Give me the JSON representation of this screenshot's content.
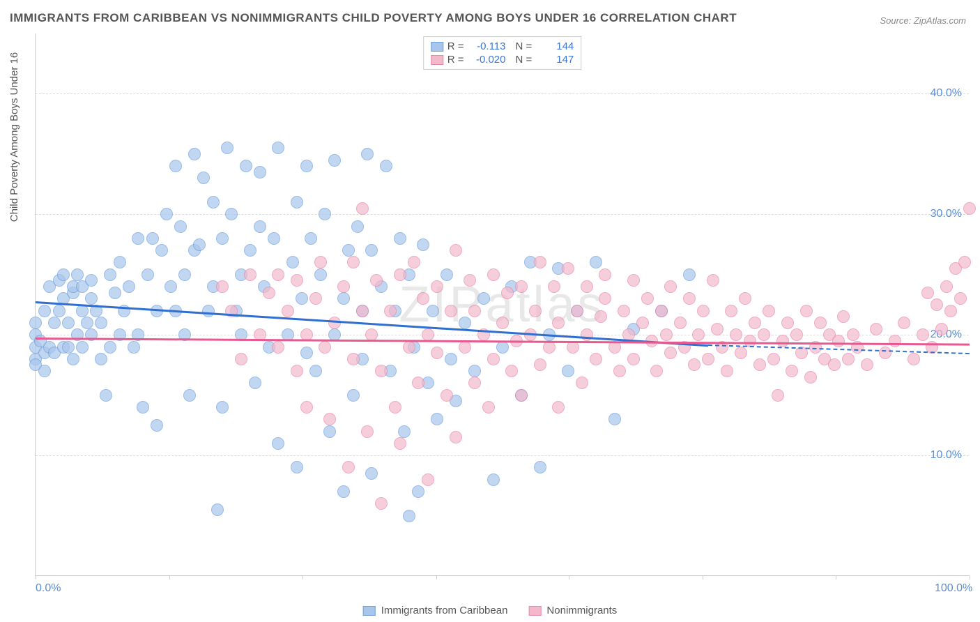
{
  "title": "IMMIGRANTS FROM CARIBBEAN VS NONIMMIGRANTS CHILD POVERTY AMONG BOYS UNDER 16 CORRELATION CHART",
  "source": "Source: ZipAtlas.com",
  "ylabel": "Child Poverty Among Boys Under 16",
  "watermark": "ZIPatlas",
  "chart": {
    "type": "scatter",
    "background_color": "#ffffff",
    "grid_color": "#dddddd",
    "axis_color": "#cccccc",
    "xlim": [
      0,
      100
    ],
    "ylim": [
      0,
      45
    ],
    "ytick_values": [
      10,
      20,
      30,
      40
    ],
    "ytick_labels": [
      "10.0%",
      "20.0%",
      "30.0%",
      "40.0%"
    ],
    "xtick_values": [
      0,
      14.3,
      28.6,
      42.9,
      57.1,
      71.4,
      85.7,
      100
    ],
    "xtick_labels_shown": {
      "0": "0.0%",
      "100": "100.0%"
    },
    "marker_radius": 9,
    "marker_opacity": 0.35,
    "marker_border_width": 1.2,
    "title_fontsize": 17,
    "label_fontsize": 15,
    "tick_fontsize": 16,
    "tick_label_color": "#5b8dd6",
    "series": [
      {
        "name": "Immigrants from Caribbean",
        "color_fill": "#a8c5ec",
        "color_border": "#6fa0dd",
        "trend_color": "#2f6fd0",
        "trend_width": 2.5,
        "R": "-0.113",
        "N": "144",
        "trend": {
          "x1": 0,
          "y1": 22.8,
          "x2": 72,
          "y2": 19.2,
          "dash_x1": 72,
          "dash_y1": 19.2,
          "dash_x2": 100,
          "dash_y2": 18.5
        },
        "points": [
          [
            0,
            18
          ],
          [
            0,
            19
          ],
          [
            0,
            20
          ],
          [
            0,
            21
          ],
          [
            0,
            17.5
          ],
          [
            0.5,
            19.5
          ],
          [
            1,
            18.5
          ],
          [
            1,
            22
          ],
          [
            1,
            17
          ],
          [
            1.5,
            19
          ],
          [
            1.5,
            24
          ],
          [
            2,
            21
          ],
          [
            2,
            18.5
          ],
          [
            2.5,
            24.5
          ],
          [
            2.5,
            22
          ],
          [
            3,
            23
          ],
          [
            3,
            19
          ],
          [
            3,
            25
          ],
          [
            3.5,
            21
          ],
          [
            3.5,
            19
          ],
          [
            4,
            23.5
          ],
          [
            4,
            18
          ],
          [
            4,
            24
          ],
          [
            4.5,
            20
          ],
          [
            4.5,
            25
          ],
          [
            5,
            22
          ],
          [
            5,
            19
          ],
          [
            5,
            24
          ],
          [
            5.5,
            21
          ],
          [
            6,
            20
          ],
          [
            6,
            23
          ],
          [
            6,
            24.5
          ],
          [
            6.5,
            22
          ],
          [
            7,
            21
          ],
          [
            7,
            18
          ],
          [
            7.5,
            15
          ],
          [
            8,
            19
          ],
          [
            8,
            25
          ],
          [
            8.5,
            23.5
          ],
          [
            9,
            20
          ],
          [
            9,
            26
          ],
          [
            9.5,
            22
          ],
          [
            10,
            24
          ],
          [
            10.5,
            19
          ],
          [
            11,
            20
          ],
          [
            11,
            28
          ],
          [
            11.5,
            14
          ],
          [
            12,
            25
          ],
          [
            12.5,
            28
          ],
          [
            13,
            22
          ],
          [
            13,
            12.5
          ],
          [
            13.5,
            27
          ],
          [
            14,
            30
          ],
          [
            14.5,
            24
          ],
          [
            15,
            22
          ],
          [
            15,
            34
          ],
          [
            15.5,
            29
          ],
          [
            16,
            25
          ],
          [
            16,
            20
          ],
          [
            16.5,
            15
          ],
          [
            17,
            27
          ],
          [
            17,
            35
          ],
          [
            17.5,
            27.5
          ],
          [
            18,
            33
          ],
          [
            18.5,
            22
          ],
          [
            19,
            24
          ],
          [
            19,
            31
          ],
          [
            19.5,
            5.5
          ],
          [
            20,
            14
          ],
          [
            20,
            28
          ],
          [
            20.5,
            35.5
          ],
          [
            21,
            30
          ],
          [
            21.5,
            22
          ],
          [
            22,
            25
          ],
          [
            22,
            20
          ],
          [
            22.5,
            34
          ],
          [
            23,
            27
          ],
          [
            23.5,
            16
          ],
          [
            24,
            29
          ],
          [
            24,
            33.5
          ],
          [
            24.5,
            24
          ],
          [
            25,
            19
          ],
          [
            25.5,
            28
          ],
          [
            26,
            11
          ],
          [
            26,
            35.5
          ],
          [
            27,
            20
          ],
          [
            27.5,
            26
          ],
          [
            28,
            31
          ],
          [
            28,
            9
          ],
          [
            28.5,
            23
          ],
          [
            29,
            18.5
          ],
          [
            29,
            34
          ],
          [
            29.5,
            28
          ],
          [
            30,
            17
          ],
          [
            30.5,
            25
          ],
          [
            31,
            30
          ],
          [
            31.5,
            12
          ],
          [
            32,
            20
          ],
          [
            32,
            34.5
          ],
          [
            33,
            23
          ],
          [
            33,
            7
          ],
          [
            33.5,
            27
          ],
          [
            34,
            15
          ],
          [
            34.5,
            29
          ],
          [
            35,
            22
          ],
          [
            35,
            18
          ],
          [
            35.5,
            35
          ],
          [
            36,
            8.5
          ],
          [
            36,
            27
          ],
          [
            37,
            24
          ],
          [
            37.5,
            34
          ],
          [
            38,
            17
          ],
          [
            38.5,
            22
          ],
          [
            39,
            28
          ],
          [
            39.5,
            12
          ],
          [
            40,
            5
          ],
          [
            40,
            25
          ],
          [
            40.5,
            19
          ],
          [
            41,
            7
          ],
          [
            41.5,
            27.5
          ],
          [
            42,
            16
          ],
          [
            42.5,
            22
          ],
          [
            43,
            13
          ],
          [
            44,
            25
          ],
          [
            44.5,
            18
          ],
          [
            45,
            14.5
          ],
          [
            46,
            21
          ],
          [
            47,
            17
          ],
          [
            48,
            23
          ],
          [
            49,
            8
          ],
          [
            50,
            19
          ],
          [
            51,
            24
          ],
          [
            52,
            15
          ],
          [
            53,
            26
          ],
          [
            54,
            9
          ],
          [
            55,
            20
          ],
          [
            56,
            25.5
          ],
          [
            57,
            17
          ],
          [
            58,
            22
          ],
          [
            60,
            26
          ],
          [
            62,
            13
          ],
          [
            64,
            20.5
          ],
          [
            67,
            22
          ],
          [
            70,
            25
          ]
        ]
      },
      {
        "name": "Nonimmigrants",
        "color_fill": "#f3b9cb",
        "color_border": "#e988ab",
        "trend_color": "#e75a8f",
        "trend_width": 2.5,
        "R": "-0.020",
        "N": "147",
        "trend": {
          "x1": 0,
          "y1": 19.8,
          "x2": 100,
          "y2": 19.3
        },
        "points": [
          [
            20,
            24
          ],
          [
            21,
            22
          ],
          [
            22,
            18
          ],
          [
            23,
            25
          ],
          [
            24,
            20
          ],
          [
            25,
            23.5
          ],
          [
            26,
            19
          ],
          [
            26,
            25
          ],
          [
            27,
            22
          ],
          [
            28,
            17
          ],
          [
            28,
            24.5
          ],
          [
            29,
            20
          ],
          [
            29,
            14
          ],
          [
            30,
            23
          ],
          [
            30.5,
            26
          ],
          [
            31,
            19
          ],
          [
            31.5,
            13
          ],
          [
            32,
            21
          ],
          [
            33,
            24
          ],
          [
            33.5,
            9
          ],
          [
            34,
            18
          ],
          [
            34,
            26
          ],
          [
            35,
            22
          ],
          [
            35,
            30.5
          ],
          [
            35.5,
            12
          ],
          [
            36,
            20
          ],
          [
            36.5,
            24.5
          ],
          [
            37,
            17
          ],
          [
            37,
            6
          ],
          [
            38,
            22
          ],
          [
            38.5,
            14
          ],
          [
            39,
            25
          ],
          [
            39,
            11
          ],
          [
            40,
            19
          ],
          [
            40.5,
            26
          ],
          [
            41,
            16
          ],
          [
            41.5,
            23
          ],
          [
            42,
            8
          ],
          [
            42,
            20
          ],
          [
            43,
            18.5
          ],
          [
            43,
            24
          ],
          [
            44,
            15
          ],
          [
            44.5,
            22
          ],
          [
            45,
            11.5
          ],
          [
            45,
            27
          ],
          [
            46,
            19
          ],
          [
            46.5,
            24.5
          ],
          [
            47,
            16
          ],
          [
            47,
            22
          ],
          [
            48,
            20
          ],
          [
            48.5,
            14
          ],
          [
            49,
            25
          ],
          [
            49,
            18
          ],
          [
            50,
            21
          ],
          [
            50.5,
            23.5
          ],
          [
            51,
            17
          ],
          [
            51.5,
            19.5
          ],
          [
            52,
            24
          ],
          [
            52,
            15
          ],
          [
            53,
            20
          ],
          [
            53.5,
            22
          ],
          [
            54,
            26
          ],
          [
            54,
            17.5
          ],
          [
            55,
            19
          ],
          [
            55.5,
            24
          ],
          [
            56,
            21
          ],
          [
            56,
            14
          ],
          [
            57,
            25.5
          ],
          [
            57.5,
            19
          ],
          [
            58,
            22
          ],
          [
            58.5,
            16
          ],
          [
            59,
            20
          ],
          [
            59,
            24
          ],
          [
            60,
            18
          ],
          [
            60.5,
            21.5
          ],
          [
            61,
            23
          ],
          [
            61,
            25
          ],
          [
            62,
            19
          ],
          [
            62.5,
            17
          ],
          [
            63,
            22
          ],
          [
            63.5,
            20
          ],
          [
            64,
            24.5
          ],
          [
            64,
            18
          ],
          [
            65,
            21
          ],
          [
            65.5,
            23
          ],
          [
            66,
            19.5
          ],
          [
            66.5,
            17
          ],
          [
            67,
            22
          ],
          [
            67.5,
            20
          ],
          [
            68,
            18.5
          ],
          [
            68,
            24
          ],
          [
            69,
            21
          ],
          [
            69.5,
            19
          ],
          [
            70,
            23
          ],
          [
            70.5,
            17.5
          ],
          [
            71,
            20
          ],
          [
            71.5,
            22
          ],
          [
            72,
            18
          ],
          [
            72.5,
            24.5
          ],
          [
            73,
            20.5
          ],
          [
            73.5,
            19
          ],
          [
            74,
            17
          ],
          [
            74.5,
            22
          ],
          [
            75,
            20
          ],
          [
            75.5,
            18.5
          ],
          [
            76,
            23
          ],
          [
            76.5,
            19.5
          ],
          [
            77,
            21
          ],
          [
            77.5,
            17.5
          ],
          [
            78,
            20
          ],
          [
            78.5,
            22
          ],
          [
            79,
            18
          ],
          [
            79.5,
            15
          ],
          [
            80,
            19.5
          ],
          [
            80.5,
            21
          ],
          [
            81,
            17
          ],
          [
            81.5,
            20
          ],
          [
            82,
            18.5
          ],
          [
            82.5,
            22
          ],
          [
            83,
            16.5
          ],
          [
            83.5,
            19
          ],
          [
            84,
            21
          ],
          [
            84.5,
            18
          ],
          [
            85,
            20
          ],
          [
            85.5,
            17.5
          ],
          [
            86,
            19.5
          ],
          [
            86.5,
            21.5
          ],
          [
            87,
            18
          ],
          [
            87.5,
            20
          ],
          [
            88,
            19
          ],
          [
            89,
            17.5
          ],
          [
            90,
            20.5
          ],
          [
            91,
            18.5
          ],
          [
            92,
            19.5
          ],
          [
            93,
            21
          ],
          [
            94,
            18
          ],
          [
            95,
            20
          ],
          [
            95.5,
            23.5
          ],
          [
            96,
            19
          ],
          [
            96.5,
            22.5
          ],
          [
            97,
            20.5
          ],
          [
            97.5,
            24
          ],
          [
            98,
            22
          ],
          [
            98.5,
            25.5
          ],
          [
            99,
            23
          ],
          [
            99.5,
            26
          ],
          [
            100,
            30.5
          ]
        ]
      }
    ]
  },
  "legend_bottom": [
    {
      "label": "Immigrants from Caribbean",
      "fill": "#a8c5ec",
      "border": "#6fa0dd"
    },
    {
      "label": "Nonimmigrants",
      "fill": "#f3b9cb",
      "border": "#e988ab"
    }
  ]
}
